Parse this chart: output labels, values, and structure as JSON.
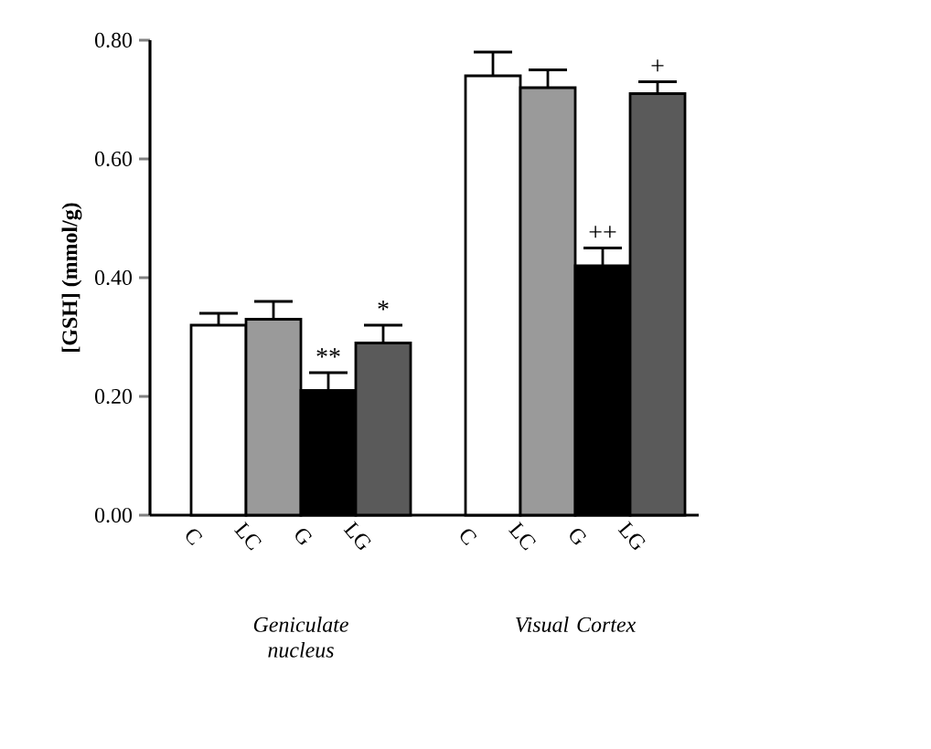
{
  "chart_data": {
    "type": "bar",
    "ylabel": "[GSH] (mmol/g)",
    "categories": [
      "Geniculate nucleus",
      "Visual Cortex"
    ],
    "series": [
      {
        "name": "C",
        "color": "#ffffff",
        "values": [
          0.32,
          0.74
        ],
        "errors": [
          0.02,
          0.04
        ]
      },
      {
        "name": "LC",
        "color": "#9a9a9a",
        "values": [
          0.33,
          0.72
        ],
        "errors": [
          0.03,
          0.03
        ]
      },
      {
        "name": "G",
        "color": "#000000",
        "values": [
          0.21,
          0.42
        ],
        "errors": [
          0.03,
          0.03
        ],
        "value_labels": [
          "**",
          "++"
        ]
      },
      {
        "name": "LG",
        "color": "#5a5a5a",
        "values": [
          0.29,
          0.71
        ],
        "errors": [
          0.03,
          0.02
        ],
        "value_labels": [
          "*",
          "+"
        ]
      }
    ],
    "ylim": [
      0,
      0.8
    ],
    "yticks": [
      {
        "value": 0,
        "label": "0.00"
      },
      {
        "value": 0.2,
        "label": "0.20"
      },
      {
        "value": 0.4,
        "label": "0.40"
      },
      {
        "value": 0.6,
        "label": "0.60"
      },
      {
        "value": 0.8,
        "label": "0.80"
      }
    ]
  }
}
